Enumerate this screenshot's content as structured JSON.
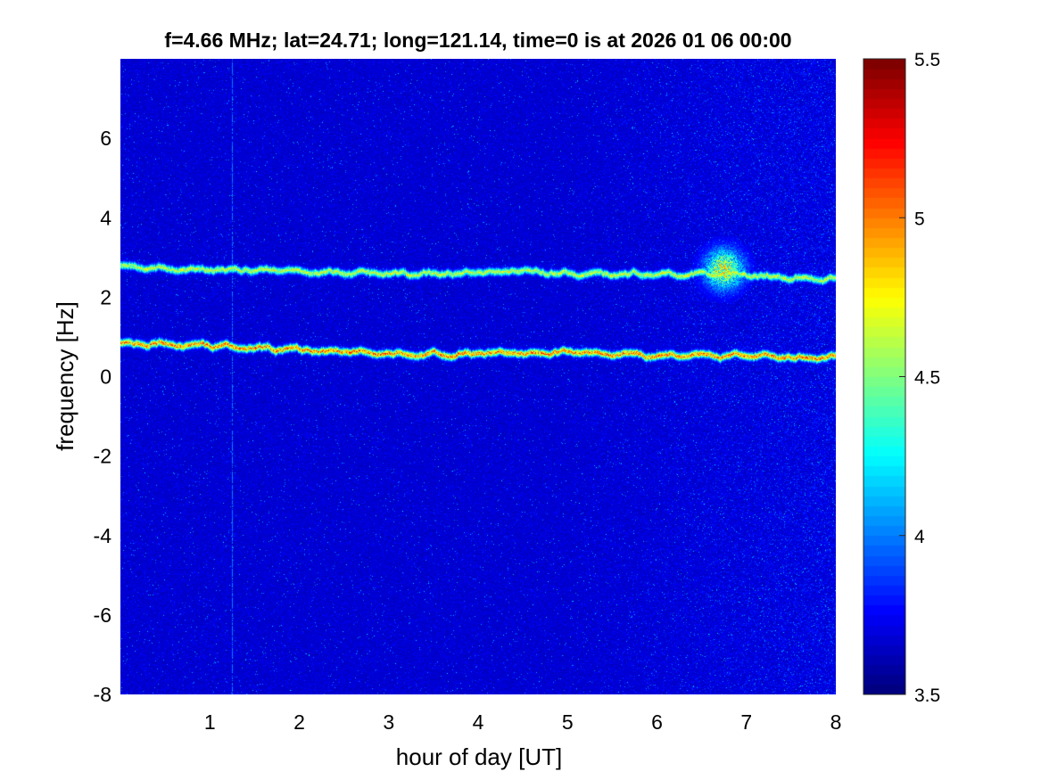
{
  "chart_data": {
    "type": "heatmap",
    "title": "f=4.66 MHz;  lat=24.71; long=121.14, time=0 is at 2026 01 06 00:00",
    "xlabel": "hour of day [UT]",
    "ylabel": "frequency [Hz]",
    "xlim": [
      0,
      8
    ],
    "ylim": [
      -8,
      8
    ],
    "x_ticks": [
      1,
      2,
      3,
      4,
      5,
      6,
      7,
      8
    ],
    "y_ticks": [
      -8,
      -6,
      -4,
      -2,
      0,
      2,
      4,
      6
    ],
    "colorbar": {
      "colormap": "jet",
      "clim": [
        3.5,
        5.5
      ],
      "ticks": [
        3.5,
        4,
        4.5,
        5,
        5.5
      ]
    },
    "background_value": 3.65,
    "traces": [
      {
        "kind": "doppler-trace",
        "points": [
          [
            0,
            2.75
          ],
          [
            1,
            2.7
          ],
          [
            2,
            2.65
          ],
          [
            3,
            2.6
          ],
          [
            4,
            2.62
          ],
          [
            4.5,
            2.65
          ],
          [
            5,
            2.6
          ],
          [
            6,
            2.55
          ],
          [
            6.8,
            2.6
          ],
          [
            7.5,
            2.45
          ],
          [
            8,
            2.45
          ]
        ],
        "peak": 4.9
      },
      {
        "kind": "doppler-trace",
        "points": [
          [
            0,
            0.85
          ],
          [
            1,
            0.75
          ],
          [
            2,
            0.7
          ],
          [
            3,
            0.55
          ],
          [
            4,
            0.6
          ],
          [
            5,
            0.6
          ],
          [
            6,
            0.55
          ],
          [
            7,
            0.55
          ],
          [
            8,
            0.45
          ]
        ],
        "peak": 5.3
      }
    ],
    "features": [
      {
        "kind": "spread-blob",
        "x": 6.75,
        "y": 2.7,
        "x_width": 0.15,
        "y_width": 0.35,
        "peak": 5.1
      },
      {
        "kind": "vertical-line",
        "x": 1.25,
        "value": 3.95
      }
    ],
    "grid": false
  }
}
